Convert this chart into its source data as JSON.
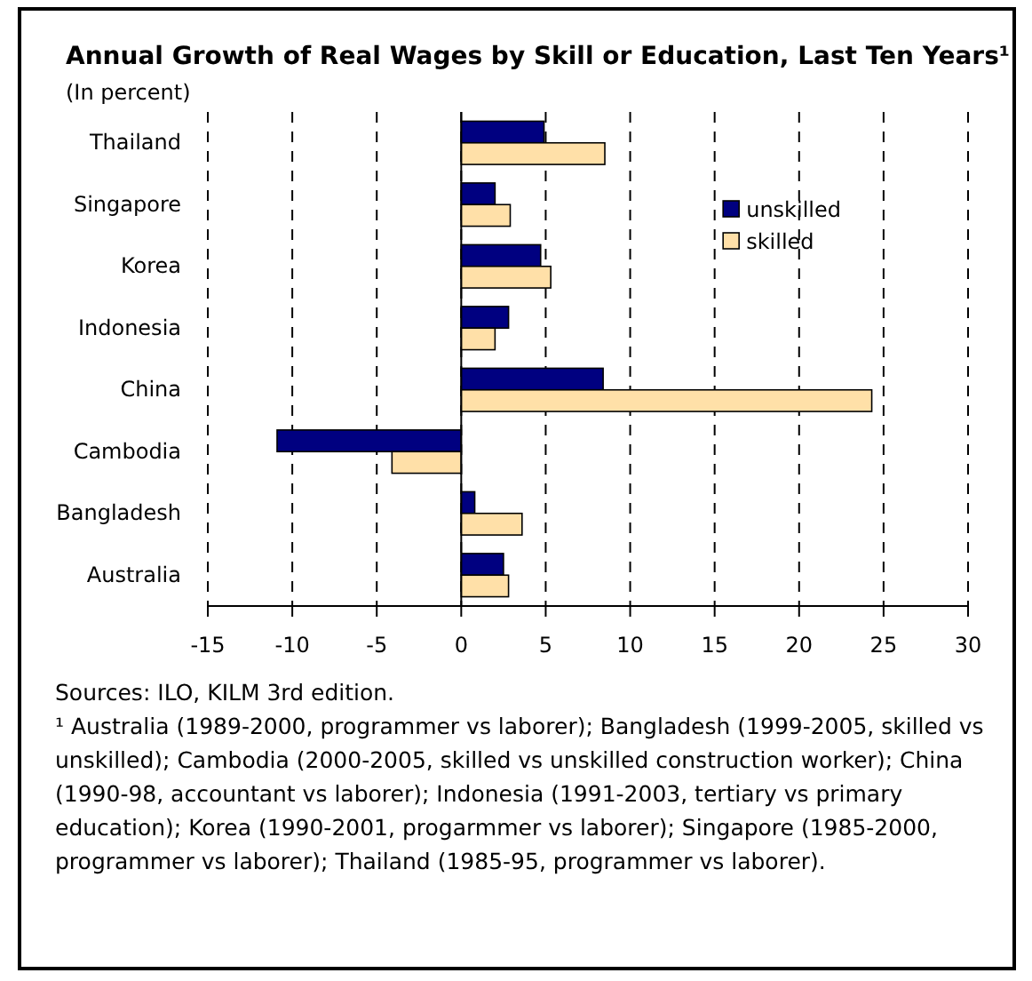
{
  "chart_data": {
    "type": "bar",
    "orientation": "horizontal",
    "title": "Annual Growth of Real Wages by Skill or Education, Last Ten Years¹",
    "subtitle": "(In percent)",
    "categories": [
      "Thailand",
      "Singapore",
      "Korea",
      "Indonesia",
      "China",
      "Cambodia",
      "Bangladesh",
      "Australia"
    ],
    "series": [
      {
        "name": "unskilled",
        "color": "#000080",
        "values": [
          4.9,
          2.0,
          4.7,
          2.8,
          8.4,
          -10.9,
          0.8,
          2.5
        ]
      },
      {
        "name": "skilled",
        "color": "#ffe0a8",
        "values": [
          8.5,
          2.9,
          5.3,
          2.0,
          24.3,
          -4.1,
          3.6,
          2.8
        ]
      }
    ],
    "xlim": [
      -15,
      30
    ],
    "xticks": [
      -15,
      -10,
      -5,
      0,
      5,
      10,
      15,
      20,
      25,
      30
    ],
    "grid": "x",
    "legend": "top right",
    "annotations": [
      "Sources: ILO, KILM 3rd edition.",
      "¹ Australia (1989-2000, programmer vs laborer); Bangladesh (1999-2005, skilled vs unskilled); Cambodia (2000-2005, skilled vs unskilled construction worker); China (1990-98, accountant vs laborer); Indonesia (1991-2003, tertiary vs primary education); Korea (1990-2001, progarmmer vs laborer); Singapore (1985-2000, programmer vs laborer); Thailand (1985-95, programmer vs laborer)."
    ]
  }
}
